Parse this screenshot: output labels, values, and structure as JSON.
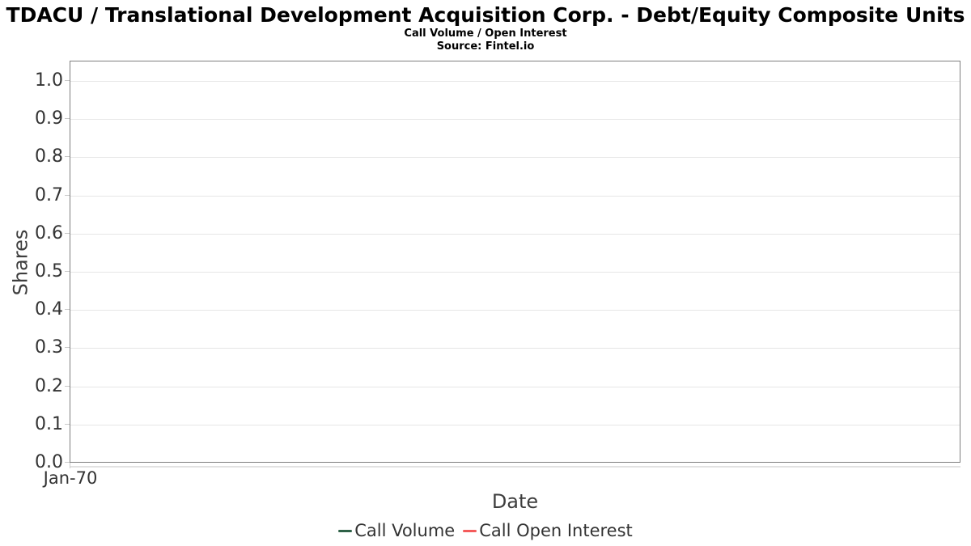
{
  "header": {
    "title": "TDACU / Translational Development Acquisition Corp. - Debt/Equity Composite Units",
    "subtitle": "Call Volume / Open Interest",
    "source": "Source: Fintel.io"
  },
  "colors": {
    "background": "#ffffff",
    "title_text": "#000000",
    "axis_text": "#333333",
    "plot_border": "#7f7f7f",
    "gridline": "#e6e6e6",
    "call_volume": "#2e6147",
    "call_open_interest": "#f45b5b"
  },
  "chart_data": {
    "type": "line",
    "title": "TDACU / Translational Development Acquisition Corp. - Debt/Equity Composite Units",
    "subtitle": "Call Volume / Open Interest",
    "source": "Source: Fintel.io",
    "xlabel": "Date",
    "ylabel": "Shares",
    "ylim": [
      0.0,
      1.0
    ],
    "ytick_values": [
      1.0,
      0.9,
      0.8,
      0.7,
      0.6,
      0.5,
      0.4,
      0.3,
      0.2,
      0.1,
      0.0
    ],
    "ytick_labels": [
      "1.0",
      "0.9",
      "0.8",
      "0.7",
      "0.6",
      "0.5",
      "0.4",
      "0.3",
      "0.2",
      "0.1",
      "0.0"
    ],
    "xticks": [
      "Jan-70"
    ],
    "grid": true,
    "legend_position": "bottom",
    "series": [
      {
        "name": "Call Volume",
        "color": "#2e6147",
        "x": [],
        "values": []
      },
      {
        "name": "Call Open Interest",
        "color": "#f45b5b",
        "x": [],
        "values": []
      }
    ]
  }
}
